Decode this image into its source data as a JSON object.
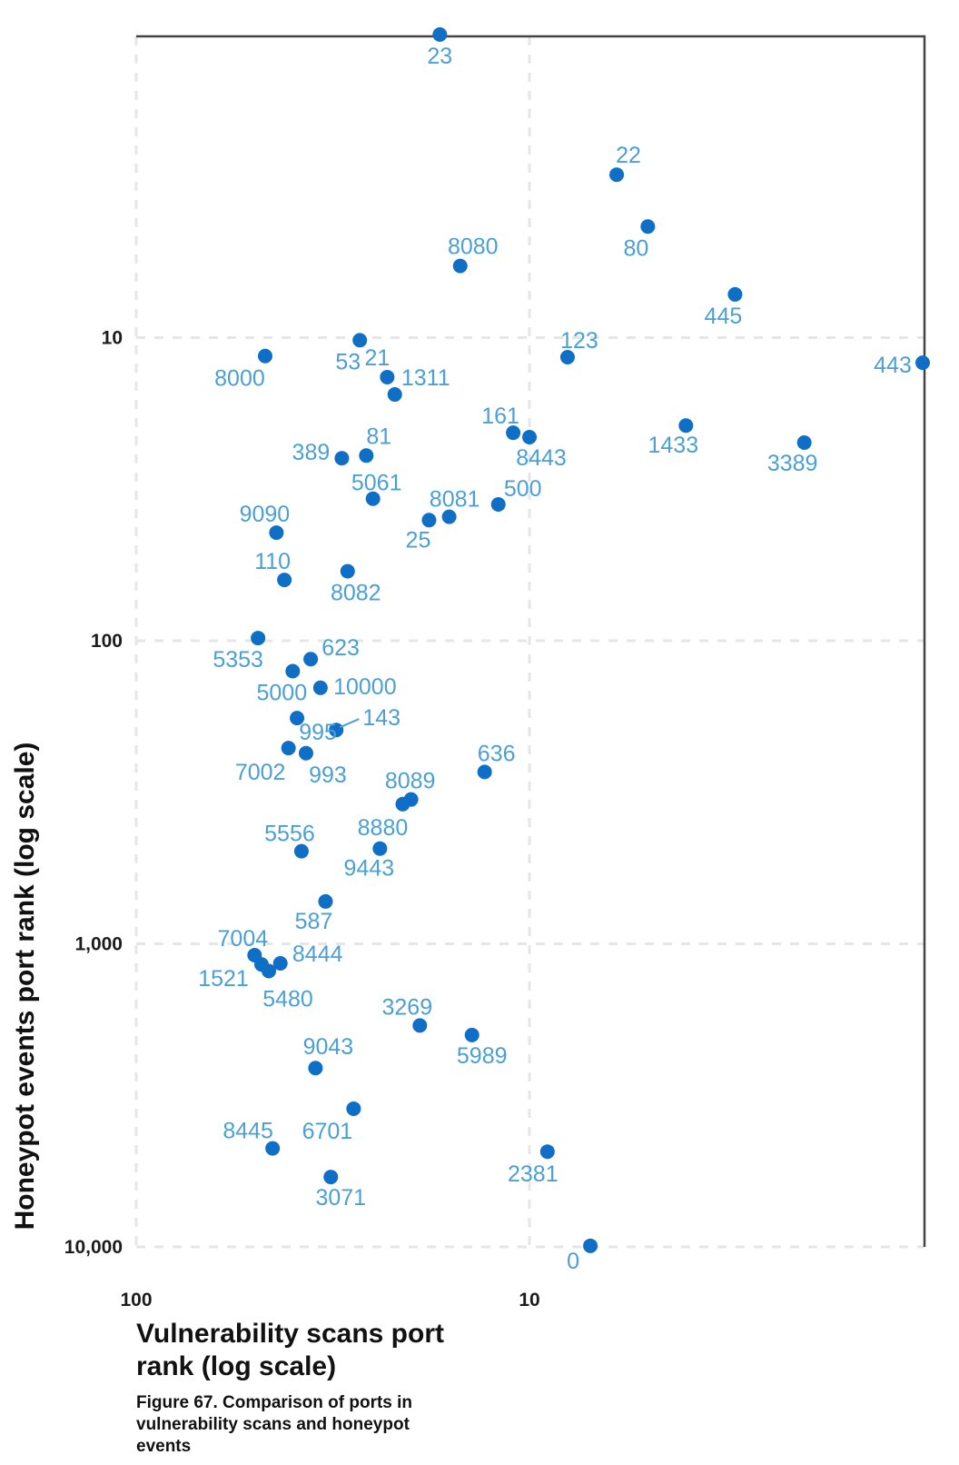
{
  "chart_data": {
    "type": "scatter",
    "title": "",
    "xlabel": "Vulnerability scans port rank (log scale)",
    "ylabel": "Honeypot events port rank (log scale)",
    "caption": "Figure 67. Comparison of ports in vulnerability scans and honeypot events",
    "x_scale": "log",
    "y_scale": "log",
    "x_reversed": true,
    "y_reversed": true,
    "xlim": [
      100,
      1
    ],
    "ylim": [
      1,
      10000
    ],
    "x_ticks": [
      {
        "value": 100,
        "label": "100"
      },
      {
        "value": 10,
        "label": "10"
      }
    ],
    "y_ticks": [
      {
        "value": 10,
        "label": "10"
      },
      {
        "value": 100,
        "label": "100"
      },
      {
        "value": 1000,
        "label": "1,000"
      },
      {
        "value": 10000,
        "label": "10,000"
      }
    ],
    "grid": true,
    "colors": {
      "point": "#0f6fc6",
      "label": "#4a9fd4",
      "axis": "#444444",
      "grid": "#e6e6e6"
    },
    "points": [
      {
        "label": "23",
        "x": 16.9,
        "y": 1.0
      },
      {
        "label": "22",
        "x": 6.0,
        "y": 2.9
      },
      {
        "label": "80",
        "x": 5.0,
        "y": 4.3
      },
      {
        "label": "8080",
        "x": 15.0,
        "y": 5.8
      },
      {
        "label": "445",
        "x": 3.0,
        "y": 7.2
      },
      {
        "label": "53",
        "x": 27.0,
        "y": 10.2
      },
      {
        "label": "123",
        "x": 8.0,
        "y": 11.6
      },
      {
        "label": "8000",
        "x": 47.0,
        "y": 11.5
      },
      {
        "label": "443",
        "x": 1.0,
        "y": 12.1
      },
      {
        "label": "21",
        "x": 23.0,
        "y": 13.5
      },
      {
        "label": "1311",
        "x": 22.0,
        "y": 15.4
      },
      {
        "label": "161",
        "x": 11.0,
        "y": 20.6
      },
      {
        "label": "8443",
        "x": 10.0,
        "y": 21.3
      },
      {
        "label": "1433",
        "x": 4.0,
        "y": 19.5
      },
      {
        "label": "3389",
        "x": 2.0,
        "y": 22.2
      },
      {
        "label": "389",
        "x": 30.0,
        "y": 25.0
      },
      {
        "label": "81",
        "x": 26.0,
        "y": 24.5
      },
      {
        "label": "5061",
        "x": 25.0,
        "y": 34.0
      },
      {
        "label": "500",
        "x": 12.0,
        "y": 35.5
      },
      {
        "label": "8081",
        "x": 16.0,
        "y": 39.0
      },
      {
        "label": "25",
        "x": 18.0,
        "y": 40.0
      },
      {
        "label": "9090",
        "x": 44.0,
        "y": 44.0
      },
      {
        "label": "8082",
        "x": 29.0,
        "y": 59.0
      },
      {
        "label": "110",
        "x": 42.0,
        "y": 63.0
      },
      {
        "label": "5353",
        "x": 49.0,
        "y": 98.0
      },
      {
        "label": "623",
        "x": 36.0,
        "y": 115.0
      },
      {
        "label": "5000",
        "x": 40.0,
        "y": 126.0
      },
      {
        "label": "10000",
        "x": 34.0,
        "y": 143.0
      },
      {
        "label": "995",
        "x": 39.0,
        "y": 180.0
      },
      {
        "label": "143",
        "x": 31.0,
        "y": 197.0
      },
      {
        "label": "7002",
        "x": 41.0,
        "y": 226.0
      },
      {
        "label": "993",
        "x": 37.0,
        "y": 235.0
      },
      {
        "label": "636",
        "x": 13.0,
        "y": 271.0
      },
      {
        "label": "8089",
        "x": 20.0,
        "y": 334.0
      },
      {
        "label": "8880",
        "x": 21.0,
        "y": 346.0
      },
      {
        "label": "9443",
        "x": 24.0,
        "y": 485.0
      },
      {
        "label": "5556",
        "x": 38.0,
        "y": 495.0
      },
      {
        "label": "587",
        "x": 33.0,
        "y": 725.0
      },
      {
        "label": "7004",
        "x": 50.0,
        "y": 1090.0
      },
      {
        "label": "1521",
        "x": 48.0,
        "y": 1170.0
      },
      {
        "label": "8444",
        "x": 43.0,
        "y": 1160.0
      },
      {
        "label": "5480",
        "x": 46.0,
        "y": 1230.0
      },
      {
        "label": "3269",
        "x": 19.0,
        "y": 1860.0
      },
      {
        "label": "5989",
        "x": 14.0,
        "y": 2000.0
      },
      {
        "label": "9043",
        "x": 35.0,
        "y": 2570.0
      },
      {
        "label": "6701",
        "x": 28.0,
        "y": 3500.0
      },
      {
        "label": "8445",
        "x": 45.0,
        "y": 4730.0
      },
      {
        "label": "2381",
        "x": 9.0,
        "y": 4850.0
      },
      {
        "label": "3071",
        "x": 32.0,
        "y": 5880.0
      },
      {
        "label": "0",
        "x": 7.0,
        "y": 9920.0
      }
    ]
  }
}
